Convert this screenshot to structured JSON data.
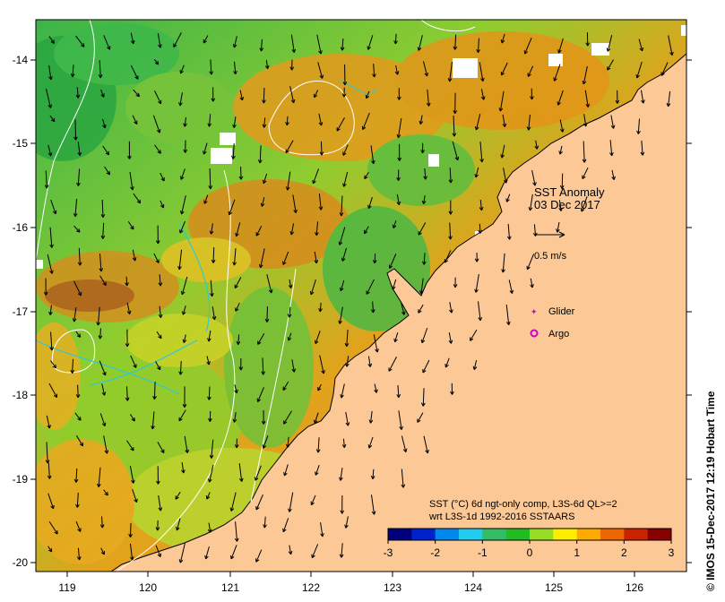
{
  "map": {
    "title_line1": "SST Anomaly",
    "title_line2": "03 Dec 2017",
    "scale_label": "0.5 m/s",
    "legend_glider": "Glider",
    "legend_argo": "Argo",
    "caption_line1": "SST (°C) 6d ngt-only comp, L3S-6d QL>=2",
    "caption_line2": "wrt L3S-1d 1992-2016 SSTAARS",
    "credit": "© IMOS 15-Dec-2017 12:19 Hobart Time",
    "colors": {
      "land": "#fbc896",
      "cool": "#22aa33",
      "warm": "#e08a10",
      "coast": "#000000"
    }
  },
  "axes": {
    "x_ticks": [
      "119",
      "120",
      "121",
      "122",
      "123",
      "124",
      "125",
      "126"
    ],
    "y_ticks": [
      "-14",
      "-15",
      "-16",
      "-17",
      "-18",
      "-19",
      "-20"
    ]
  },
  "colorbar": {
    "ticks": [
      "-3",
      "-2",
      "-1",
      "0",
      "1",
      "2",
      "3"
    ],
    "colors": [
      "#00007a",
      "#0022cc",
      "#0088ee",
      "#22ccee",
      "#33bb66",
      "#22bb22",
      "#99dd22",
      "#ffee00",
      "#ffaa00",
      "#ee6600",
      "#cc2200",
      "#880000"
    ]
  }
}
